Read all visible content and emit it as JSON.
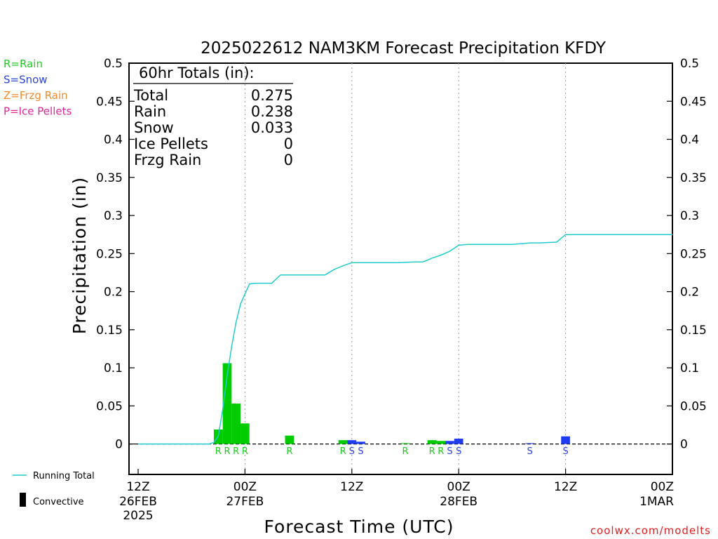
{
  "chart_data": {
    "type": "bar",
    "title": "2025022612 NAM3KM Forecast Precipitation KFDY",
    "xlabel": "Forecast Time (UTC)",
    "ylabel": "Precipitation (in)",
    "ylim": [
      -0.04,
      0.5
    ],
    "yticks": [
      "0",
      "0.05",
      "0.1",
      "0.15",
      "0.2",
      "0.25",
      "0.3",
      "0.35",
      "0.4",
      "0.45",
      "0.5"
    ],
    "ytick_values": [
      0,
      0.05,
      0.1,
      0.15,
      0.2,
      0.25,
      0.3,
      0.35,
      0.4,
      0.45,
      0.5
    ],
    "x_range_hours": [
      0,
      60
    ],
    "xticks": [
      {
        "hour": 0,
        "l1": "12Z",
        "l2": "26FEB",
        "l3": "2025"
      },
      {
        "hour": 12,
        "l1": "00Z",
        "l2": "27FEB",
        "l3": ""
      },
      {
        "hour": 24,
        "l1": "12Z",
        "l2": "",
        "l3": ""
      },
      {
        "hour": 36,
        "l1": "00Z",
        "l2": "28FEB",
        "l3": ""
      },
      {
        "hour": 48,
        "l1": "12Z",
        "l2": "",
        "l3": ""
      },
      {
        "hour": 60,
        "l1": "00Z",
        "l2": "1MAR",
        "l3": ""
      }
    ],
    "legend": [
      {
        "code": "R",
        "text": "R=Rain",
        "color": "#22cc22"
      },
      {
        "code": "S",
        "text": "S=Snow",
        "color": "#2b44d8"
      },
      {
        "code": "Z",
        "text": "Z=Frzg Rain",
        "color": "#f08a30"
      },
      {
        "code": "P",
        "text": "P=Ice Pellets",
        "color": "#e0249a"
      }
    ],
    "bar_colors": {
      "R": "#00cc00",
      "S": "#1f3cf0"
    },
    "bars": [
      {
        "hour": 9,
        "value": 0.019,
        "type": "R"
      },
      {
        "hour": 10,
        "value": 0.106,
        "type": "R"
      },
      {
        "hour": 11,
        "value": 0.053,
        "type": "R"
      },
      {
        "hour": 12,
        "value": 0.027,
        "type": "R"
      },
      {
        "hour": 17,
        "value": 0.011,
        "type": "R"
      },
      {
        "hour": 23,
        "value": 0.005,
        "type": "R"
      },
      {
        "hour": 24,
        "value": 0.005,
        "type": "S"
      },
      {
        "hour": 25,
        "value": 0.003,
        "type": "S"
      },
      {
        "hour": 30,
        "value": 0.001,
        "type": "R"
      },
      {
        "hour": 33,
        "value": 0.005,
        "type": "R"
      },
      {
        "hour": 34,
        "value": 0.004,
        "type": "R"
      },
      {
        "hour": 35,
        "value": 0.004,
        "type": "S"
      },
      {
        "hour": 36,
        "value": 0.007,
        "type": "S"
      },
      {
        "hour": 44,
        "value": 0.001,
        "type": "S"
      },
      {
        "hour": 48,
        "value": 0.01,
        "type": "S"
      }
    ],
    "running_total": {
      "name": "Running Total",
      "color": "#22cccc",
      "points": [
        [
          0,
          0
        ],
        [
          8,
          0
        ],
        [
          8.5,
          0.002
        ],
        [
          9,
          0.01
        ],
        [
          9.5,
          0.045
        ],
        [
          10,
          0.09
        ],
        [
          10.5,
          0.128
        ],
        [
          11,
          0.16
        ],
        [
          11.5,
          0.184
        ],
        [
          12,
          0.197
        ],
        [
          12.5,
          0.21
        ],
        [
          13,
          0.211
        ],
        [
          15,
          0.211
        ],
        [
          16,
          0.222
        ],
        [
          21,
          0.222
        ],
        [
          22,
          0.229
        ],
        [
          23,
          0.234
        ],
        [
          24,
          0.238
        ],
        [
          29,
          0.238
        ],
        [
          31,
          0.239
        ],
        [
          32,
          0.239
        ],
        [
          33,
          0.244
        ],
        [
          34,
          0.248
        ],
        [
          35,
          0.253
        ],
        [
          36,
          0.261
        ],
        [
          37,
          0.262
        ],
        [
          42,
          0.262
        ],
        [
          43,
          0.263
        ],
        [
          44,
          0.264
        ],
        [
          45,
          0.264
        ],
        [
          47,
          0.265
        ],
        [
          48,
          0.275
        ],
        [
          60,
          0.275
        ]
      ]
    },
    "totals_box": {
      "header": "60hr Totals (in):",
      "rows": [
        {
          "label": "Total",
          "value": "0.275"
        },
        {
          "label": "Rain",
          "value": "0.238"
        },
        {
          "label": "Snow",
          "value": "0.033"
        },
        {
          "label": "Ice Pellets",
          "value": "0"
        },
        {
          "label": "Frzg Rain",
          "value": "0"
        }
      ]
    },
    "key_legend": [
      {
        "name": "running-total",
        "text": "Running Total"
      },
      {
        "name": "convective",
        "text": "Convective"
      }
    ],
    "source": "coolwx.com/modelts"
  }
}
